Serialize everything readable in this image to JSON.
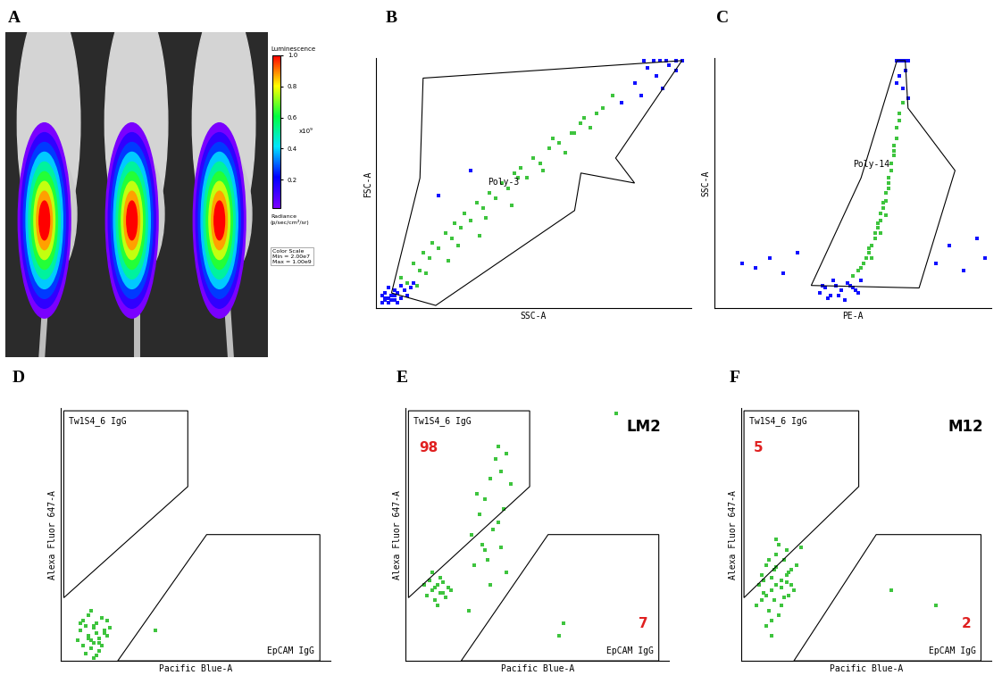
{
  "chart_data": [
    {
      "letter": "A",
      "type": "image",
      "mice_signal": [
        1.0,
        1.0,
        1.0
      ],
      "colorbar": {
        "label": "Luminescence",
        "range": [
          0.02,
          1.0
        ],
        "ticks": [
          0.2,
          0.4,
          0.6,
          0.8,
          1.0
        ],
        "multiplier": "x10⁹",
        "units": "Radiance\n(p/sec/cm²/sr)",
        "scale_note": "Color Scale\nMin = 2.00e7\nMax = 1.00e9"
      }
    },
    {
      "letter": "B",
      "type": "scatter",
      "x_label": "SSC-A",
      "y_label": "FSC-A",
      "xlim": [
        0,
        100
      ],
      "ylim": [
        0,
        100
      ],
      "xticks": [],
      "yticks": [],
      "tick_labels": false,
      "gates": [
        {
          "name": "Poly-3",
          "points": [
            [
              5,
              6
            ],
            [
              19,
              1
            ],
            [
              63,
              39
            ],
            [
              65,
              54
            ],
            [
              82,
              50
            ],
            [
              76,
              60
            ],
            [
              97,
              99
            ],
            [
              15,
              92
            ],
            [
              14,
              52
            ]
          ]
        }
      ],
      "series": [
        {
          "color": "#1010ff",
          "x": [
            2,
            3,
            4,
            5,
            6,
            3,
            7,
            8,
            4,
            2,
            6,
            9,
            5,
            7,
            10,
            3,
            8,
            11,
            6,
            4,
            12,
            85,
            88,
            90,
            92,
            95,
            97,
            86,
            89,
            93,
            82,
            84,
            78,
            91,
            95,
            20,
            30
          ],
          "values": [
            2,
            4,
            2,
            5,
            3,
            6,
            6,
            4,
            8,
            5,
            7,
            7,
            3,
            2,
            5,
            3,
            9,
            8,
            5,
            4,
            10,
            99,
            99,
            99,
            99,
            99,
            99,
            96,
            93,
            97,
            90,
            85,
            82,
            88,
            95,
            45,
            55
          ]
        },
        {
          "color": "#3ec43e",
          "x": [
            8,
            10,
            12,
            14,
            15,
            17,
            18,
            20,
            22,
            24,
            25,
            27,
            28,
            30,
            32,
            34,
            36,
            38,
            40,
            42,
            44,
            46,
            48,
            50,
            52,
            55,
            58,
            60,
            62,
            65,
            68,
            70,
            72,
            75,
            16,
            26,
            35,
            45,
            56,
            66,
            13,
            23,
            33,
            43,
            53,
            63
          ],
          "values": [
            12,
            10,
            18,
            15,
            22,
            20,
            26,
            24,
            30,
            28,
            34,
            32,
            38,
            35,
            42,
            40,
            46,
            44,
            50,
            48,
            54,
            56,
            52,
            60,
            58,
            64,
            66,
            62,
            70,
            74,
            72,
            78,
            80,
            85,
            14,
            25,
            36,
            52,
            68,
            76,
            9,
            19,
            29,
            41,
            55,
            70
          ]
        }
      ]
    },
    {
      "letter": "C",
      "type": "scatter",
      "x_label": "PE-A",
      "y_label": "SSC-A",
      "xlim": [
        0,
        100
      ],
      "ylim": [
        0,
        100
      ],
      "xticks": [],
      "yticks": [],
      "tick_labels": false,
      "gates": [
        {
          "name": "Poly-14",
          "points": [
            [
              35,
              9
            ],
            [
              74,
              8
            ],
            [
              87,
              55
            ],
            [
              70,
              80
            ],
            [
              69,
              99
            ],
            [
              66,
              99
            ],
            [
              53,
              52
            ]
          ]
        }
      ],
      "series": [
        {
          "color": "#1010ff",
          "x": [
            38,
            40,
            42,
            44,
            46,
            48,
            50,
            52,
            41,
            45,
            49,
            43,
            47,
            51,
            39,
            53,
            10,
            15,
            20,
            25,
            30,
            80,
            85,
            90,
            95,
            98,
            66,
            67,
            68,
            69,
            70,
            67,
            68,
            69,
            66,
            70
          ],
          "values": [
            6,
            8,
            5,
            9,
            7,
            10,
            8,
            6,
            4,
            5,
            9,
            11,
            3,
            7,
            9,
            11,
            18,
            16,
            20,
            14,
            22,
            18,
            25,
            15,
            28,
            20,
            99,
            99,
            99,
            99,
            99,
            93,
            88,
            95,
            90,
            84
          ]
        },
        {
          "color": "#3ec43e",
          "x": [
            50,
            52,
            54,
            55,
            56,
            57,
            58,
            58,
            59,
            60,
            60,
            61,
            62,
            62,
            63,
            63,
            64,
            64,
            65,
            65,
            66,
            66,
            67,
            67,
            68,
            53,
            56,
            59,
            61,
            63,
            65,
            57,
            60,
            62
          ],
          "values": [
            13,
            15,
            18,
            20,
            22,
            25,
            28,
            30,
            32,
            35,
            38,
            40,
            43,
            46,
            48,
            52,
            55,
            58,
            61,
            65,
            68,
            72,
            75,
            78,
            82,
            16,
            24,
            34,
            42,
            50,
            63,
            20,
            30,
            37
          ]
        }
      ]
    },
    {
      "letter": "D",
      "type": "scatter",
      "x_label": "Pacific Blue-A",
      "y_label": "Alexa Fluor 647-A",
      "xlim": [
        0,
        100
      ],
      "ylim": [
        0,
        100
      ],
      "xticks": [],
      "yticks": [],
      "tick_labels": false,
      "gates": [
        {
          "name": "Tw1S4_6 IgG",
          "points": [
            [
              1,
              99
            ],
            [
              47,
              99
            ],
            [
              47,
              69
            ],
            [
              1,
              25
            ]
          ]
        },
        {
          "name": "EpCAM IgG",
          "points": [
            [
              54,
              50
            ],
            [
              96,
              50
            ],
            [
              96,
              0
            ],
            [
              21,
              0
            ]
          ]
        }
      ],
      "series": [
        {
          "color": "#3ec43e",
          "x": [
            6,
            8,
            10,
            12,
            14,
            16,
            18,
            7,
            9,
            11,
            13,
            15,
            17,
            8,
            10,
            12,
            14,
            16,
            9,
            11,
            13,
            15,
            10,
            12,
            14,
            11,
            13,
            7,
            17,
            12,
            35
          ],
          "values": [
            8,
            6,
            10,
            7,
            9,
            11,
            13,
            12,
            14,
            5,
            15,
            6,
            10,
            16,
            9,
            13,
            4,
            12,
            3,
            8,
            11,
            17,
            18,
            14,
            7,
            20,
            2,
            15,
            16,
            1,
            12
          ]
        }
      ]
    },
    {
      "letter": "E",
      "type": "scatter",
      "sample": "LM2",
      "x_label": "Pacific Blue-A",
      "y_label": "Alexa Fluor 647-A",
      "xlim": [
        0,
        100
      ],
      "ylim": [
        0,
        100
      ],
      "xticks": [],
      "yticks": [],
      "tick_labels": false,
      "gates": [
        {
          "name": "Tw1S4_6 IgG",
          "points": [
            [
              1,
              99
            ],
            [
              47,
              99
            ],
            [
              47,
              69
            ],
            [
              1,
              25
            ]
          ],
          "count": 98
        },
        {
          "name": "EpCAM IgG",
          "points": [
            [
              54,
              50
            ],
            [
              96,
              50
            ],
            [
              96,
              0
            ],
            [
              21,
              0
            ]
          ],
          "count": 7
        }
      ],
      "series": [
        {
          "color": "#3ec43e",
          "x": [
            8,
            10,
            12,
            14,
            16,
            9,
            11,
            13,
            15,
            10,
            12,
            14,
            11,
            13,
            7,
            17,
            25,
            28,
            30,
            32,
            34,
            35,
            36,
            38,
            30,
            33,
            26,
            29,
            31,
            37,
            40,
            27,
            35,
            32,
            38,
            24,
            36,
            60,
            58,
            80
          ],
          "values": [
            26,
            28,
            30,
            27,
            29,
            32,
            24,
            33,
            25,
            35,
            22,
            31,
            29,
            27,
            30,
            28,
            50,
            58,
            64,
            72,
            80,
            85,
            75,
            82,
            44,
            52,
            38,
            46,
            40,
            60,
            70,
            66,
            55,
            30,
            35,
            20,
            45,
            15,
            10,
            98
          ]
        }
      ]
    },
    {
      "letter": "F",
      "type": "scatter",
      "sample": "M12",
      "x_label": "Pacific Blue-A",
      "y_label": "Alexa Fluor 647-A",
      "xlim": [
        0,
        100
      ],
      "ylim": [
        0,
        100
      ],
      "xticks": [],
      "yticks": [],
      "tick_labels": false,
      "gates": [
        {
          "name": "Tw1S4_6 IgG",
          "points": [
            [
              1,
              99
            ],
            [
              47,
              99
            ],
            [
              47,
              69
            ],
            [
              1,
              25
            ]
          ],
          "count": 5
        },
        {
          "name": "EpCAM IgG",
          "points": [
            [
              54,
              50
            ],
            [
              96,
              50
            ],
            [
              96,
              0
            ],
            [
              21,
              0
            ]
          ],
          "count": 2
        }
      ],
      "series": [
        {
          "color": "#3ec43e",
          "x": [
            6,
            8,
            10,
            12,
            14,
            16,
            18,
            20,
            22,
            7,
            9,
            11,
            13,
            15,
            17,
            19,
            21,
            8,
            10,
            12,
            14,
            16,
            18,
            20,
            9,
            11,
            13,
            15,
            17,
            19,
            10,
            12,
            14,
            16,
            18,
            12,
            14,
            24,
            60,
            78
          ],
          "values": [
            22,
            24,
            26,
            28,
            30,
            32,
            34,
            36,
            38,
            30,
            32,
            20,
            36,
            18,
            40,
            26,
            28,
            34,
            38,
            16,
            42,
            22,
            44,
            30,
            27,
            40,
            24,
            46,
            25,
            35,
            14,
            33,
            37,
            29,
            31,
            10,
            48,
            45,
            28,
            22
          ]
        }
      ]
    }
  ]
}
